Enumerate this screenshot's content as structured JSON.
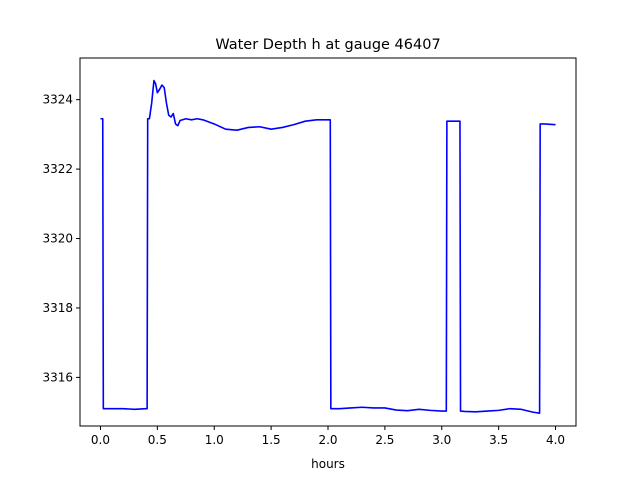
{
  "chart_data": {
    "type": "line",
    "title": "Water Depth h at gauge 46407",
    "xlabel": "hours",
    "ylabel": "",
    "xlim": [
      -0.18,
      4.18
    ],
    "ylim": [
      3314.6,
      3325.2
    ],
    "xticks": [
      0.0,
      0.5,
      1.0,
      1.5,
      2.0,
      2.5,
      3.0,
      3.5,
      4.0
    ],
    "xtick_labels": [
      "0.0",
      "0.5",
      "1.0",
      "1.5",
      "2.0",
      "2.5",
      "3.0",
      "3.5",
      "4.0"
    ],
    "yticks": [
      3316,
      3318,
      3320,
      3322,
      3324
    ],
    "ytick_labels": [
      "3316",
      "3318",
      "3320",
      "3322",
      "3324"
    ],
    "grid": false,
    "series": [
      {
        "color": "#0000ff",
        "x": [
          0.0,
          0.02,
          0.025,
          0.1,
          0.2,
          0.3,
          0.4,
          0.41,
          0.415,
          0.43,
          0.45,
          0.47,
          0.485,
          0.5,
          0.52,
          0.54,
          0.56,
          0.58,
          0.6,
          0.62,
          0.64,
          0.66,
          0.68,
          0.7,
          0.75,
          0.8,
          0.85,
          0.9,
          1.0,
          1.1,
          1.2,
          1.3,
          1.4,
          1.5,
          1.6,
          1.7,
          1.8,
          1.9,
          2.0,
          2.02,
          2.025,
          2.1,
          2.2,
          2.3,
          2.4,
          2.5,
          2.6,
          2.7,
          2.8,
          2.9,
          3.0,
          3.04,
          3.045,
          3.1,
          3.16,
          3.165,
          3.2,
          3.3,
          3.4,
          3.5,
          3.6,
          3.7,
          3.8,
          3.86,
          3.865,
          3.9,
          4.0
        ],
        "y": [
          3323.45,
          3323.45,
          3315.1,
          3315.1,
          3315.1,
          3315.08,
          3315.1,
          3315.1,
          3323.45,
          3323.45,
          3323.9,
          3324.55,
          3324.45,
          3324.2,
          3324.3,
          3324.42,
          3324.35,
          3323.9,
          3323.55,
          3323.5,
          3323.6,
          3323.3,
          3323.25,
          3323.4,
          3323.45,
          3323.42,
          3323.45,
          3323.42,
          3323.3,
          3323.15,
          3323.12,
          3323.2,
          3323.22,
          3323.15,
          3323.2,
          3323.28,
          3323.38,
          3323.42,
          3323.42,
          3323.42,
          3315.1,
          3315.1,
          3315.12,
          3315.14,
          3315.12,
          3315.12,
          3315.06,
          3315.04,
          3315.08,
          3315.05,
          3315.03,
          3315.03,
          3323.38,
          3323.38,
          3323.38,
          3315.03,
          3315.02,
          3315.01,
          3315.03,
          3315.05,
          3315.1,
          3315.08,
          3315.0,
          3314.97,
          3323.3,
          3323.3,
          3323.28
        ]
      }
    ]
  }
}
